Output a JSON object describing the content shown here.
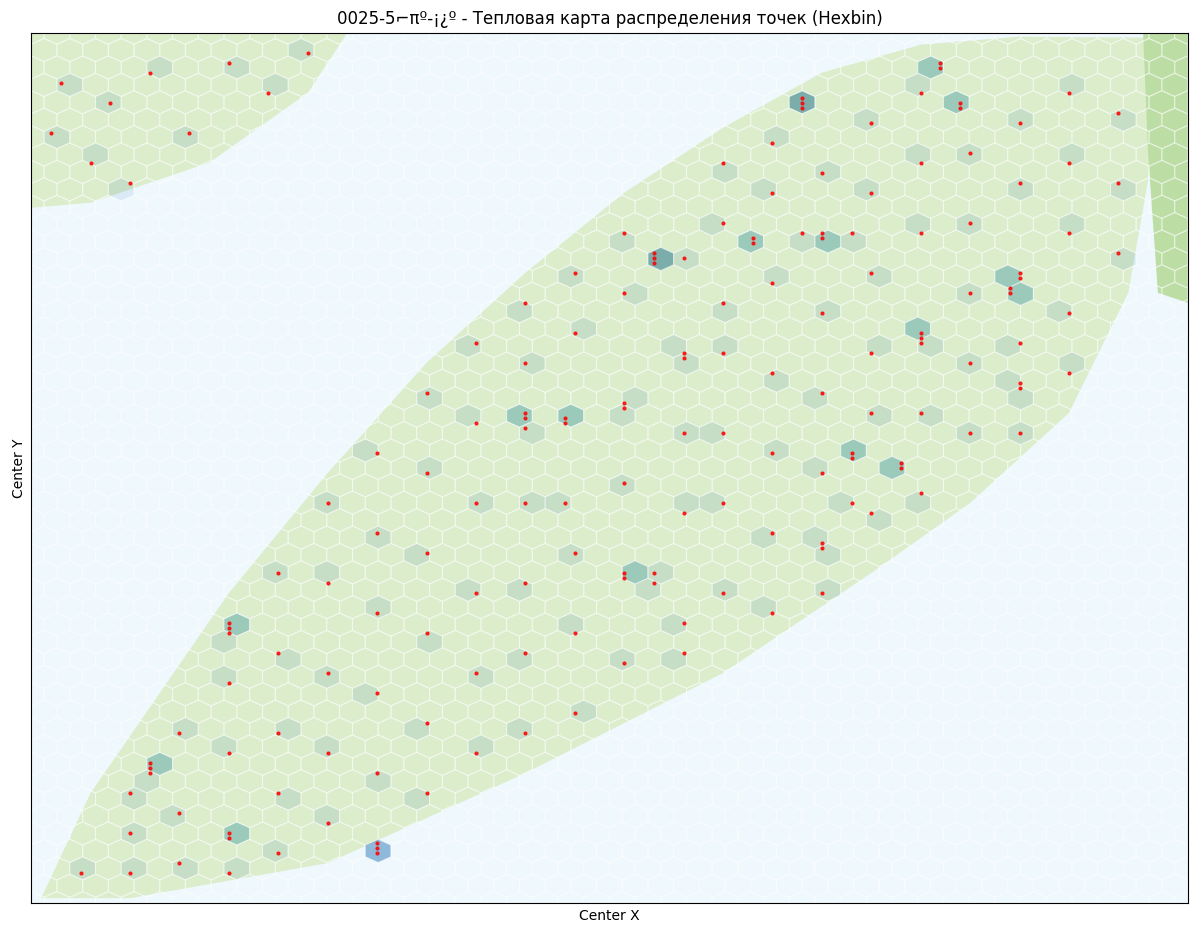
{
  "chart_data": {
    "type": "hexbin",
    "title": "0025-5⌐πº-¡¿º - Тепловая карта распределения точек (Hexbin)",
    "x_label": "Center X",
    "y_label": "Center Y",
    "xlim": [
      0,
      1170
    ],
    "ylim": [
      870,
      0
    ],
    "tick_labels": false,
    "color": "red",
    "points": [
      [
        50,
        840
      ],
      [
        100,
        760
      ],
      [
        100,
        800
      ],
      [
        100,
        840
      ],
      [
        120,
        730
      ],
      [
        120,
        735
      ],
      [
        120,
        740
      ],
      [
        150,
        700
      ],
      [
        150,
        780
      ],
      [
        150,
        830
      ],
      [
        200,
        590
      ],
      [
        200,
        595
      ],
      [
        200,
        600
      ],
      [
        200,
        650
      ],
      [
        200,
        720
      ],
      [
        200,
        800
      ],
      [
        200,
        805
      ],
      [
        200,
        840
      ],
      [
        250,
        540
      ],
      [
        250,
        620
      ],
      [
        250,
        700
      ],
      [
        250,
        760
      ],
      [
        250,
        820
      ],
      [
        300,
        470
      ],
      [
        300,
        550
      ],
      [
        300,
        640
      ],
      [
        300,
        720
      ],
      [
        300,
        790
      ],
      [
        350,
        420
      ],
      [
        350,
        500
      ],
      [
        350,
        580
      ],
      [
        350,
        660
      ],
      [
        350,
        740
      ],
      [
        350,
        810
      ],
      [
        350,
        820
      ],
      [
        350,
        815
      ],
      [
        400,
        360
      ],
      [
        400,
        440
      ],
      [
        400,
        520
      ],
      [
        400,
        600
      ],
      [
        400,
        690
      ],
      [
        400,
        760
      ],
      [
        450,
        310
      ],
      [
        450,
        390
      ],
      [
        450,
        470
      ],
      [
        450,
        560
      ],
      [
        450,
        640
      ],
      [
        450,
        720
      ],
      [
        500,
        270
      ],
      [
        500,
        330
      ],
      [
        500,
        380
      ],
      [
        500,
        385
      ],
      [
        500,
        395
      ],
      [
        500,
        470
      ],
      [
        500,
        550
      ],
      [
        500,
        620
      ],
      [
        500,
        700
      ],
      [
        540,
        385
      ],
      [
        540,
        390
      ],
      [
        540,
        470
      ],
      [
        550,
        240
      ],
      [
        550,
        300
      ],
      [
        550,
        520
      ],
      [
        550,
        600
      ],
      [
        550,
        680
      ],
      [
        600,
        200
      ],
      [
        600,
        260
      ],
      [
        600,
        370
      ],
      [
        600,
        375
      ],
      [
        600,
        450
      ],
      [
        600,
        540
      ],
      [
        600,
        630
      ],
      [
        600,
        545
      ],
      [
        630,
        220
      ],
      [
        630,
        225
      ],
      [
        630,
        230
      ],
      [
        630,
        540
      ],
      [
        630,
        550
      ],
      [
        660,
        225
      ],
      [
        660,
        320
      ],
      [
        660,
        325
      ],
      [
        660,
        400
      ],
      [
        660,
        480
      ],
      [
        660,
        590
      ],
      [
        660,
        620
      ],
      [
        700,
        130
      ],
      [
        700,
        190
      ],
      [
        700,
        270
      ],
      [
        700,
        320
      ],
      [
        700,
        400
      ],
      [
        700,
        470
      ],
      [
        700,
        560
      ],
      [
        730,
        205
      ],
      [
        730,
        210
      ],
      [
        750,
        110
      ],
      [
        750,
        160
      ],
      [
        750,
        250
      ],
      [
        750,
        340
      ],
      [
        750,
        420
      ],
      [
        750,
        500
      ],
      [
        750,
        580
      ],
      [
        780,
        65
      ],
      [
        780,
        70
      ],
      [
        780,
        75
      ],
      [
        780,
        200
      ],
      [
        800,
        140
      ],
      [
        800,
        200
      ],
      [
        800,
        205
      ],
      [
        800,
        280
      ],
      [
        800,
        360
      ],
      [
        800,
        440
      ],
      [
        800,
        510
      ],
      [
        800,
        515
      ],
      [
        800,
        560
      ],
      [
        830,
        200
      ],
      [
        830,
        420
      ],
      [
        830,
        425
      ],
      [
        830,
        470
      ],
      [
        850,
        90
      ],
      [
        850,
        160
      ],
      [
        850,
        240
      ],
      [
        850,
        320
      ],
      [
        850,
        380
      ],
      [
        850,
        480
      ],
      [
        880,
        430
      ],
      [
        880,
        435
      ],
      [
        900,
        60
      ],
      [
        900,
        130
      ],
      [
        900,
        200
      ],
      [
        900,
        300
      ],
      [
        900,
        305
      ],
      [
        900,
        310
      ],
      [
        900,
        380
      ],
      [
        900,
        460
      ],
      [
        920,
        30
      ],
      [
        920,
        35
      ],
      [
        940,
        70
      ],
      [
        940,
        75
      ],
      [
        950,
        120
      ],
      [
        950,
        190
      ],
      [
        950,
        260
      ],
      [
        950,
        330
      ],
      [
        950,
        400
      ],
      [
        990,
        255
      ],
      [
        990,
        260
      ],
      [
        1000,
        90
      ],
      [
        1000,
        150
      ],
      [
        1000,
        240
      ],
      [
        1000,
        245
      ],
      [
        1000,
        310
      ],
      [
        1000,
        350
      ],
      [
        1000,
        355
      ],
      [
        1000,
        400
      ],
      [
        1050,
        60
      ],
      [
        1050,
        130
      ],
      [
        1050,
        200
      ],
      [
        1050,
        280
      ],
      [
        1050,
        340
      ],
      [
        1100,
        80
      ],
      [
        1100,
        150
      ],
      [
        1100,
        220
      ],
      [
        30,
        50
      ],
      [
        80,
        70
      ],
      [
        120,
        40
      ],
      [
        160,
        100
      ],
      [
        200,
        30
      ],
      [
        240,
        60
      ],
      [
        60,
        130
      ],
      [
        280,
        20
      ],
      [
        100,
        150
      ],
      [
        20,
        100
      ]
    ]
  }
}
